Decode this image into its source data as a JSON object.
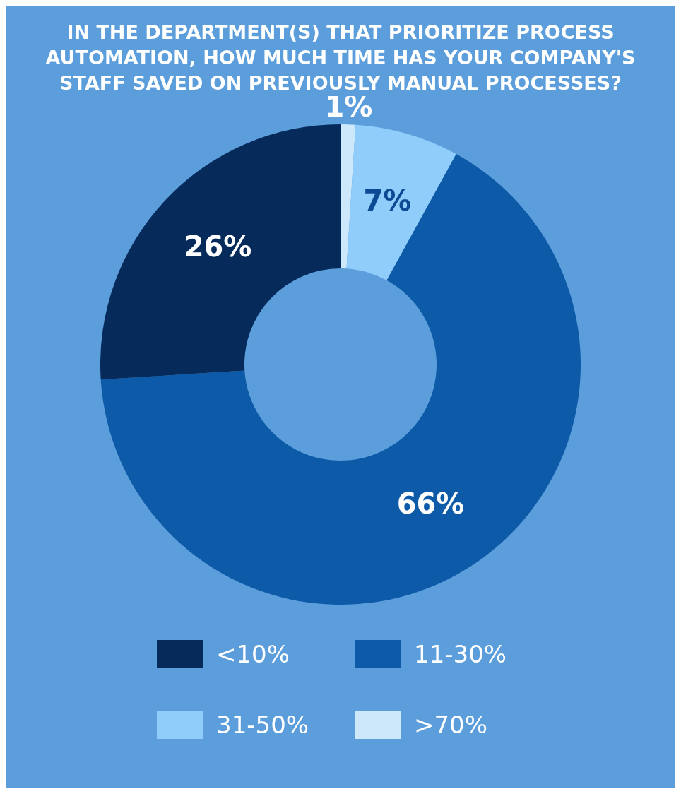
{
  "chart_data": {
    "type": "donut",
    "title": "IN THE DEPARTMENT(S) THAT PRIORITIZE PROCESS AUTOMATION, HOW MUCH TIME HAS YOUR COMPANY'S STAFF SAVED ON PREVIOUSLY MANUAL PROCESSES?",
    "categories": [
      "<10%",
      "11-30%",
      "31-50%",
      ">70%"
    ],
    "values": [
      26,
      66,
      7,
      1
    ],
    "value_labels": [
      "26%",
      "66%",
      "7%",
      "1%"
    ],
    "colors": [
      "#062a5a",
      "#0c5aa8",
      "#90cdfa",
      "#cde7fb"
    ],
    "legend": "bottom"
  }
}
